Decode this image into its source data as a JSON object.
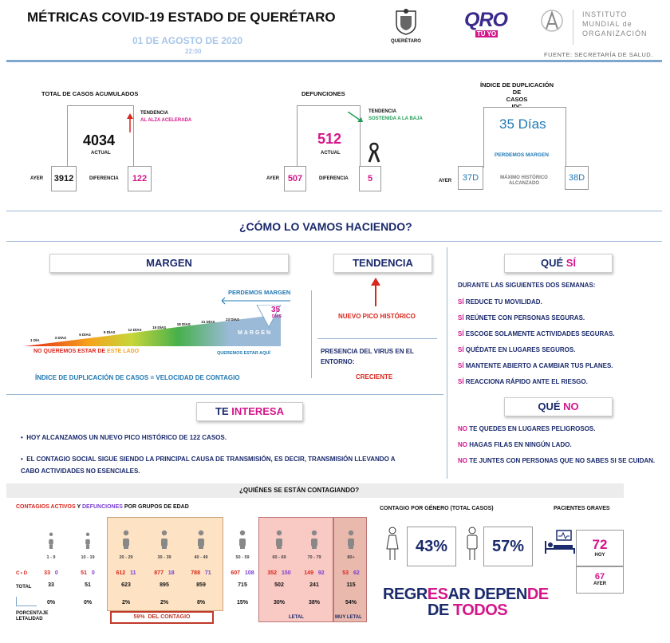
{
  "header": {
    "title": "MÉTRICAS COVID-19 ESTADO DE QUERÉTARO",
    "date": "01 DE AGOSTO DE 2020",
    "time": "22:00",
    "logo_gov_text": "QUERÉTARO",
    "logo_qro": "QRO",
    "logo_qro_sub": "TÚ YO",
    "institute_line1": "INSTITUTO",
    "institute_line2": "MUNDIAL de",
    "institute_line3": "ORGANIZACIÓN",
    "source": "FUENTE: SECRETARÍA DE SALUD."
  },
  "cases": {
    "title": "TOTAL DE CASOS ACUMULADOS",
    "current": "4034",
    "current_label": "ACTUAL",
    "trend_label": "TENDENCIA",
    "trend_value": "AL ALZA ACELERADA",
    "yesterday_label": "AYER",
    "yesterday": "3912",
    "diff_label": "DIFERENCIA",
    "diff": "122"
  },
  "deaths": {
    "title": "DEFUNCIONES",
    "current": "512",
    "current_label": "ACTUAL",
    "trend_label": "TENDENCIA",
    "trend_value": "SOSTENIDA A LA BAJA",
    "yesterday_label": "AYER",
    "yesterday": "507",
    "diff_label": "DIFERENCIA",
    "diff": "5"
  },
  "idc": {
    "title_line1": "ÍNDICE DE DUPLICACIÓN DE",
    "title_line2": "CASOS",
    "title_line3": "IDC",
    "current": "35 Días",
    "status": "PERDEMOS MARGEN",
    "yesterday_label": "AYER",
    "yesterday": "37D",
    "max_label": "MÁXIMO HISTÓRICO ALCANZADO",
    "max": "38D"
  },
  "how": {
    "title": "¿CÓMO LO VAMOS HACIENDO?"
  },
  "margin": {
    "title": "MARGEN",
    "losing": "PERDEMOS MARGEN",
    "days_value": "35",
    "days_label": "DÍAS",
    "scale": [
      "1 DÍA",
      "3 DÍAS",
      "6 DÍAS",
      "9 DÍAS",
      "12 DÍAS",
      "15 DÍAS",
      "18 DÍAS",
      "21 DÍAS",
      "23 DÍAS"
    ],
    "bar_label": "MARGEN",
    "left_label_pre": "NO QUEREMOS ESTAR DE ",
    "left_label_hl": "ESTE LADO",
    "right_label": "QUEREMOS ESTAR AQUÍ",
    "footnote": "ÍNDICE DE DUPLICACIÓN DE CASOS = VELOCIDAD DE CONTAGIO"
  },
  "tendency": {
    "title": "TENDENCIA",
    "peak": "NUEVO PICO HISTÓRICO",
    "presence_label": "PRESENCIA DEL VIRUS EN EL ENTORNO:",
    "presence_value": "CRECIENTE"
  },
  "que_si": {
    "title_a": "QUÉ ",
    "title_b": "SÍ",
    "intro": "DURANTE LAS SIGUIENTES DOS SEMANAS:",
    "items": [
      {
        "k": "SÍ",
        "t": " REDUCE TU MOVILIDAD."
      },
      {
        "k": "SÍ",
        "t": " REÚNETE CON PERSONAS SEGURAS."
      },
      {
        "k": "SÍ",
        "t": " ESCOGE SOLAMENTE ACTIVIDADES SEGURAS."
      },
      {
        "k": "SÍ",
        "t": " QUÉDATE EN LUGARES SEGUROS."
      },
      {
        "k": "SÍ",
        "t": " MANTENTE ABIERTO A CAMBIAR TUS PLANES."
      },
      {
        "k": "SÍ",
        "t": " REACCIONA RÁPIDO ANTE EL RIESGO."
      }
    ]
  },
  "que_no": {
    "title_a": "QUÉ ",
    "title_b": "NO",
    "items": [
      {
        "k": "NO",
        "t": " TE QUEDES EN LUGARES PELIGROSOS."
      },
      {
        "k": "NO",
        "t": " HAGAS FILAS EN NINGÚN LADO."
      },
      {
        "k": "NO",
        "t": " TE JUNTES CON PERSONAS QUE NO SABES SI SE CUIDAN."
      }
    ]
  },
  "interest": {
    "title_a": "TE ",
    "title_b": "INTERESA",
    "bullets": [
      "HOY ALCANZAMOS UN NUEVO PICO HISTÓRICO DE 122 CASOS.",
      "EL CONTAGIO SOCIAL SIGUE SIENDO LA PRINCIPAL CAUSA DE TRANSMISIÓN, ES DECIR, TRANSMISIÓN LLEVANDO A CABO ACTIVIDADES NO ESENCIALES."
    ]
  },
  "who": {
    "title": "¿QUIÉNES SE ESTÁN CONTAGIANDO?",
    "subtitle_a": "CONTAGIOS ACTIVOS",
    "subtitle_y": " Y ",
    "subtitle_b": "DEFUNCIONES",
    "subtitle_c": " POR GRUPOS DE EDAD",
    "row_cd": "C • D",
    "row_total": "TOTAL",
    "row_let": "PORCENTAJE LETALIDAD",
    "groups": [
      {
        "age": "1 - 9",
        "c": "33",
        "d": "0",
        "total": "33",
        "let": "0%"
      },
      {
        "age": "10 - 19",
        "c": "51",
        "d": "0",
        "total": "51",
        "let": "0%"
      },
      {
        "age": "20 - 29",
        "c": "612",
        "d": "11",
        "total": "623",
        "let": "2%"
      },
      {
        "age": "30 - 39",
        "c": "877",
        "d": "18",
        "total": "895",
        "let": "2%"
      },
      {
        "age": "40 - 49",
        "c": "788",
        "d": "71",
        "total": "859",
        "let": "8%"
      },
      {
        "age": "50 - 59",
        "c": "607",
        "d": "108",
        "total": "715",
        "let": "15%"
      },
      {
        "age": "60 - 69",
        "c": "352",
        "d": "150",
        "total": "502",
        "let": "30%"
      },
      {
        "age": "70 - 79",
        "c": "149",
        "d": "92",
        "total": "241",
        "let": "38%"
      },
      {
        "age": "80+",
        "c": "53",
        "d": "62",
        "total": "115",
        "let": "54%"
      }
    ],
    "contagion_pct": "59%",
    "contagion_label": "DEL CONTAGIO",
    "letal": "LETAL",
    "muy_letal": "MUY LETAL"
  },
  "gender": {
    "title": "CONTAGIO POR GÉNERO (TOTAL CASOS)",
    "female": "43%",
    "male": "57%"
  },
  "severe": {
    "title": "PACIENTES GRAVES",
    "today": "72",
    "today_label": "HOY",
    "yesterday": "67",
    "yesterday_label": "AYER"
  },
  "slogan": {
    "l1a": "REGR",
    "l1b": "ES",
    "l1c": "AR DEPEN",
    "l1d": "DE",
    "l2a": "DE ",
    "l2b": "TODOS"
  },
  "colors": {
    "navy": "#1a2a6c",
    "magenta": "#d4168a",
    "red": "#d9261c",
    "green": "#1f9d55",
    "blue": "#1f78b4"
  }
}
